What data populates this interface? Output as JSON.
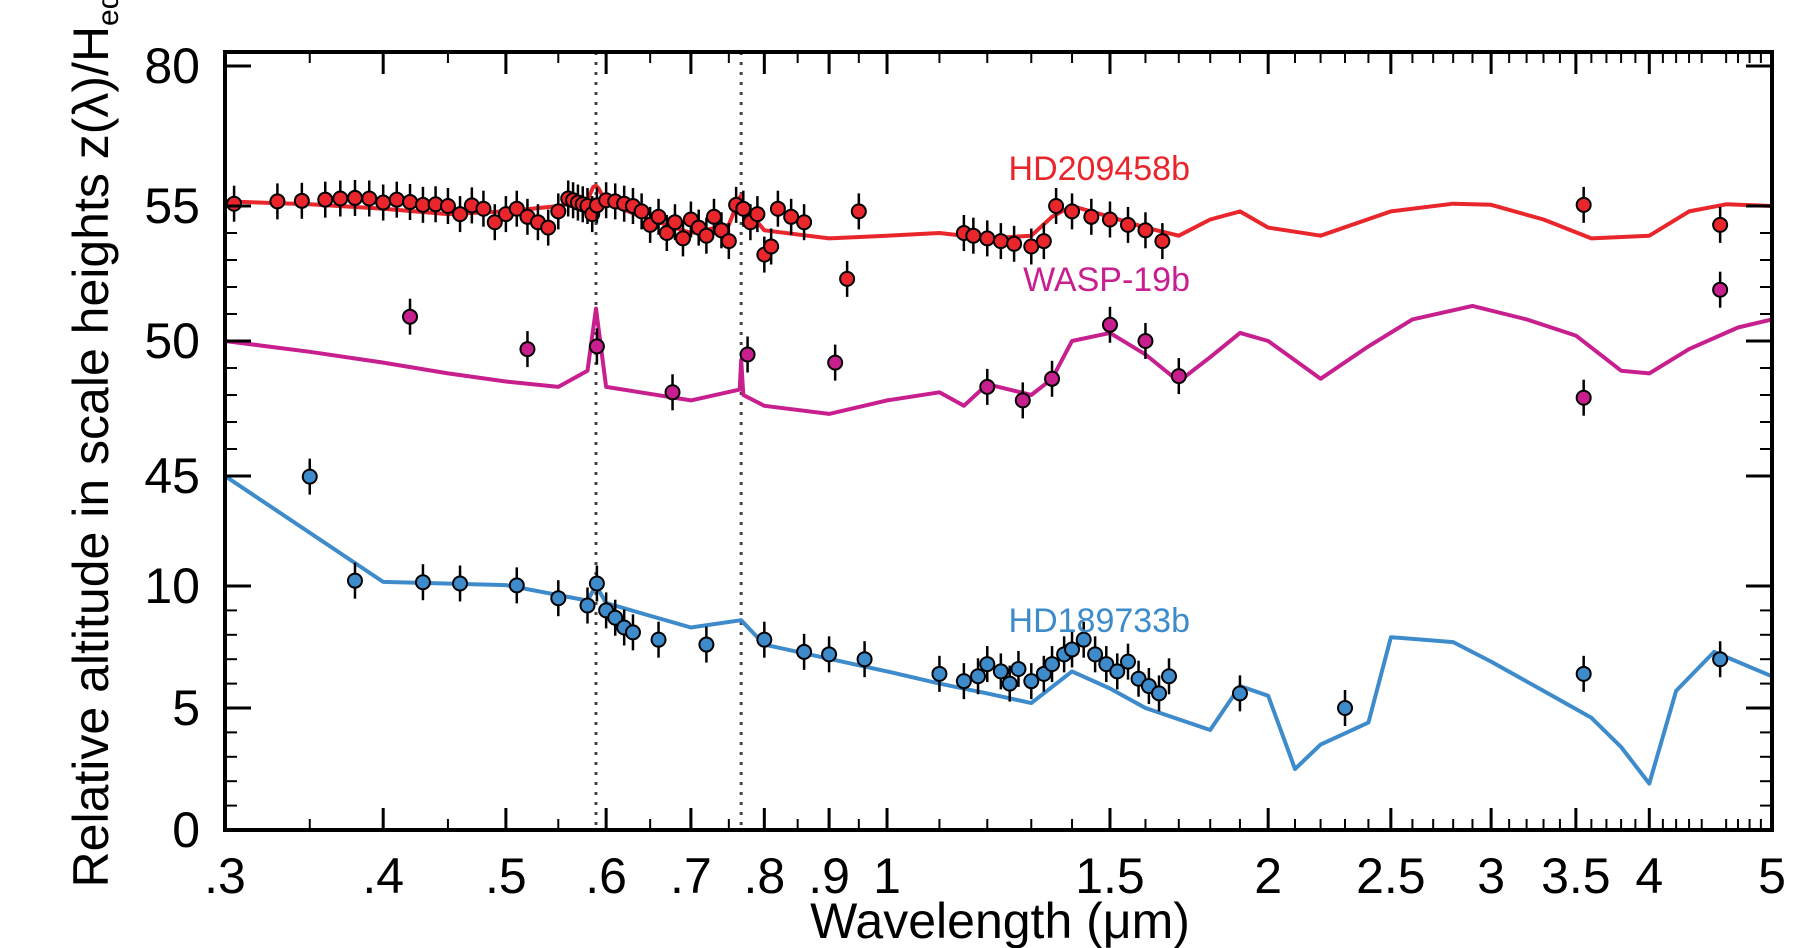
{
  "chart_data": {
    "type": "scatter",
    "xlabel": "Wavelength  (μm)",
    "ylabel": "Relative altitude in scale heights  z(λ)/H",
    "ylabel_sub": "eq",
    "x_scale": "log",
    "xlim": [
      0.3,
      5
    ],
    "x_tick_labels": [
      {
        "x": 0.3,
        "label": ".3"
      },
      {
        "x": 0.4,
        "label": ".4"
      },
      {
        "x": 0.5,
        "label": ".5"
      },
      {
        "x": 0.6,
        "label": ".6"
      },
      {
        "x": 0.7,
        "label": ".7"
      },
      {
        "x": 0.8,
        "label": ".8"
      },
      {
        "x": 0.9,
        "label": ".9"
      },
      {
        "x": 1,
        "label": "1"
      },
      {
        "x": 1.5,
        "label": "1.5"
      },
      {
        "x": 2,
        "label": "2"
      },
      {
        "x": 2.5,
        "label": "2.5"
      },
      {
        "x": 3,
        "label": "3"
      },
      {
        "x": 3.5,
        "label": "3.5"
      },
      {
        "x": 4,
        "label": "4"
      },
      {
        "x": 5,
        "label": "5"
      }
    ],
    "y_tick_labels": [
      "0",
      "5",
      "10",
      "45",
      "50",
      "55",
      "80"
    ],
    "y_axis_note": "broken axis: segments 0–10, 45–55, 80",
    "reference_lines": [
      0.589,
      0.767
    ],
    "grid": false,
    "series": [
      {
        "name": "HD209458b",
        "color": "#e8262b",
        "model": [
          [
            0.3,
            55.8
          ],
          [
            0.35,
            55.3
          ],
          [
            0.4,
            54.9
          ],
          [
            0.45,
            54.7
          ],
          [
            0.5,
            54.8
          ],
          [
            0.55,
            55.0
          ],
          [
            0.58,
            56.0
          ],
          [
            0.586,
            58.3
          ],
          [
            0.589,
            58.5
          ],
          [
            0.592,
            58.0
          ],
          [
            0.6,
            55.5
          ],
          [
            0.65,
            54.5
          ],
          [
            0.7,
            54.0
          ],
          [
            0.75,
            54.3
          ],
          [
            0.765,
            56.5
          ],
          [
            0.767,
            56.8
          ],
          [
            0.77,
            55.2
          ],
          [
            0.8,
            54.1
          ],
          [
            0.9,
            53.8
          ],
          [
            1.0,
            53.9
          ],
          [
            1.1,
            54.0
          ],
          [
            1.2,
            53.8
          ],
          [
            1.3,
            53.9
          ],
          [
            1.35,
            54.6
          ],
          [
            1.4,
            55.0
          ],
          [
            1.5,
            54.6
          ],
          [
            1.6,
            54.2
          ],
          [
            1.7,
            53.9
          ],
          [
            1.8,
            54.5
          ],
          [
            1.9,
            54.8
          ],
          [
            2.0,
            54.2
          ],
          [
            2.2,
            53.9
          ],
          [
            2.5,
            54.8
          ],
          [
            2.8,
            55.4
          ],
          [
            3.0,
            55.2
          ],
          [
            3.3,
            54.5
          ],
          [
            3.6,
            53.8
          ],
          [
            4.0,
            53.9
          ],
          [
            4.3,
            54.8
          ],
          [
            4.6,
            55.3
          ],
          [
            5.0,
            55.0
          ]
        ],
        "points": [
          [
            0.305,
            55.4
          ],
          [
            0.33,
            55.8
          ],
          [
            0.345,
            55.9
          ],
          [
            0.36,
            56.1
          ],
          [
            0.37,
            56.3
          ],
          [
            0.38,
            56.4
          ],
          [
            0.39,
            56.3
          ],
          [
            0.4,
            55.6
          ],
          [
            0.41,
            56.1
          ],
          [
            0.42,
            55.7
          ],
          [
            0.43,
            55.2
          ],
          [
            0.44,
            55.3
          ],
          [
            0.45,
            55.0
          ],
          [
            0.46,
            54.7
          ],
          [
            0.47,
            55.1
          ],
          [
            0.48,
            54.9
          ],
          [
            0.49,
            54.4
          ],
          [
            0.5,
            54.7
          ],
          [
            0.51,
            54.9
          ],
          [
            0.52,
            54.6
          ],
          [
            0.53,
            54.4
          ],
          [
            0.54,
            54.2
          ],
          [
            0.55,
            54.8
          ],
          [
            0.56,
            56.3
          ],
          [
            0.565,
            56.0
          ],
          [
            0.57,
            55.6
          ],
          [
            0.575,
            55.3
          ],
          [
            0.58,
            55.0
          ],
          [
            0.585,
            54.7
          ],
          [
            0.59,
            55.1
          ],
          [
            0.6,
            56.0
          ],
          [
            0.61,
            55.8
          ],
          [
            0.62,
            55.4
          ],
          [
            0.63,
            55.0
          ],
          [
            0.64,
            54.8
          ],
          [
            0.65,
            54.3
          ],
          [
            0.66,
            54.6
          ],
          [
            0.67,
            54.0
          ],
          [
            0.68,
            54.4
          ],
          [
            0.69,
            53.8
          ],
          [
            0.7,
            54.5
          ],
          [
            0.71,
            54.2
          ],
          [
            0.72,
            53.9
          ],
          [
            0.73,
            54.6
          ],
          [
            0.74,
            54.1
          ],
          [
            0.75,
            53.7
          ],
          [
            0.76,
            55.2
          ],
          [
            0.77,
            54.9
          ],
          [
            0.78,
            54.4
          ],
          [
            0.79,
            54.7
          ],
          [
            0.8,
            53.2
          ],
          [
            0.81,
            53.5
          ],
          [
            0.82,
            54.9
          ],
          [
            0.84,
            54.6
          ],
          [
            0.86,
            54.4
          ],
          [
            0.93,
            52.3
          ],
          [
            0.95,
            54.8
          ],
          [
            1.15,
            54.0
          ],
          [
            1.17,
            53.9
          ],
          [
            1.2,
            53.8
          ],
          [
            1.23,
            53.7
          ],
          [
            1.26,
            53.6
          ],
          [
            1.3,
            53.5
          ],
          [
            1.33,
            53.7
          ],
          [
            1.36,
            55.0
          ],
          [
            1.4,
            54.8
          ],
          [
            1.45,
            54.6
          ],
          [
            1.5,
            54.5
          ],
          [
            1.55,
            54.3
          ],
          [
            1.6,
            54.1
          ],
          [
            1.65,
            53.7
          ],
          [
            3.55,
            55.2
          ],
          [
            4.55,
            54.3
          ]
        ]
      },
      {
        "name": "WASP-19b",
        "color": "#c81f8e",
        "model": [
          [
            0.3,
            50.0
          ],
          [
            0.35,
            49.6
          ],
          [
            0.4,
            49.2
          ],
          [
            0.45,
            48.8
          ],
          [
            0.5,
            48.5
          ],
          [
            0.55,
            48.3
          ],
          [
            0.58,
            48.9
          ],
          [
            0.589,
            51.2
          ],
          [
            0.6,
            48.3
          ],
          [
            0.7,
            47.8
          ],
          [
            0.765,
            48.2
          ],
          [
            0.767,
            49.3
          ],
          [
            0.77,
            48.0
          ],
          [
            0.8,
            47.6
          ],
          [
            0.9,
            47.3
          ],
          [
            1.0,
            47.8
          ],
          [
            1.1,
            48.1
          ],
          [
            1.15,
            47.6
          ],
          [
            1.2,
            48.4
          ],
          [
            1.3,
            48.0
          ],
          [
            1.35,
            48.6
          ],
          [
            1.4,
            50.0
          ],
          [
            1.5,
            50.3
          ],
          [
            1.6,
            49.5
          ],
          [
            1.7,
            48.5
          ],
          [
            1.8,
            49.4
          ],
          [
            1.9,
            50.3
          ],
          [
            2.0,
            50.0
          ],
          [
            2.2,
            48.6
          ],
          [
            2.4,
            49.8
          ],
          [
            2.6,
            50.8
          ],
          [
            2.9,
            51.3
          ],
          [
            3.2,
            50.8
          ],
          [
            3.5,
            50.2
          ],
          [
            3.8,
            48.9
          ],
          [
            4.0,
            48.8
          ],
          [
            4.3,
            49.7
          ],
          [
            4.7,
            50.5
          ],
          [
            5.0,
            50.8
          ]
        ],
        "points": [
          [
            0.42,
            50.9
          ],
          [
            0.52,
            49.7
          ],
          [
            0.59,
            49.8
          ],
          [
            0.677,
            48.1
          ],
          [
            0.776,
            49.5
          ],
          [
            0.91,
            49.2
          ],
          [
            1.2,
            48.3
          ],
          [
            1.28,
            47.8
          ],
          [
            1.35,
            48.6
          ],
          [
            1.5,
            50.6
          ],
          [
            1.6,
            50.0
          ],
          [
            1.7,
            48.7
          ],
          [
            3.55,
            47.9
          ],
          [
            4.55,
            51.9
          ]
        ]
      },
      {
        "name": "HD189733b",
        "color": "#3d8bcb",
        "model": [
          [
            0.3,
            45.0
          ],
          [
            0.4,
            11.3
          ],
          [
            0.5,
            10.3
          ],
          [
            0.58,
            9.4
          ],
          [
            0.589,
            10.2
          ],
          [
            0.6,
            9.3
          ],
          [
            0.7,
            8.3
          ],
          [
            0.767,
            8.6
          ],
          [
            0.8,
            7.6
          ],
          [
            1.0,
            6.5
          ],
          [
            1.1,
            6.0
          ],
          [
            1.2,
            5.6
          ],
          [
            1.3,
            5.2
          ],
          [
            1.4,
            6.5
          ],
          [
            1.5,
            5.8
          ],
          [
            1.6,
            5.0
          ],
          [
            1.8,
            4.1
          ],
          [
            1.9,
            5.9
          ],
          [
            2.0,
            5.5
          ],
          [
            2.1,
            2.5
          ],
          [
            2.2,
            3.5
          ],
          [
            2.4,
            4.4
          ],
          [
            2.5,
            7.9
          ],
          [
            2.8,
            7.7
          ],
          [
            3.0,
            6.9
          ],
          [
            3.3,
            5.7
          ],
          [
            3.6,
            4.6
          ],
          [
            3.8,
            3.4
          ],
          [
            4.0,
            1.9
          ],
          [
            4.2,
            5.7
          ],
          [
            4.5,
            7.3
          ],
          [
            5.0,
            6.3
          ]
        ],
        "points": [
          [
            0.35,
            44.8
          ],
          [
            0.38,
            11.7
          ],
          [
            0.43,
            11.2
          ],
          [
            0.46,
            10.8
          ],
          [
            0.51,
            10.2
          ],
          [
            0.55,
            9.5
          ],
          [
            0.58,
            9.2
          ],
          [
            0.59,
            10.8
          ],
          [
            0.6,
            9.0
          ],
          [
            0.61,
            8.7
          ],
          [
            0.62,
            8.3
          ],
          [
            0.63,
            8.1
          ],
          [
            0.66,
            7.8
          ],
          [
            0.72,
            7.6
          ],
          [
            0.8,
            7.8
          ],
          [
            0.86,
            7.3
          ],
          [
            0.9,
            7.2
          ],
          [
            0.96,
            7.0
          ],
          [
            1.1,
            6.4
          ],
          [
            1.15,
            6.1
          ],
          [
            1.18,
            6.3
          ],
          [
            1.2,
            6.8
          ],
          [
            1.23,
            6.5
          ],
          [
            1.25,
            6.0
          ],
          [
            1.27,
            6.6
          ],
          [
            1.3,
            6.1
          ],
          [
            1.33,
            6.4
          ],
          [
            1.35,
            6.8
          ],
          [
            1.38,
            7.2
          ],
          [
            1.4,
            7.4
          ],
          [
            1.43,
            7.8
          ],
          [
            1.46,
            7.2
          ],
          [
            1.49,
            6.8
          ],
          [
            1.52,
            6.5
          ],
          [
            1.55,
            6.9
          ],
          [
            1.58,
            6.2
          ],
          [
            1.61,
            5.9
          ],
          [
            1.64,
            5.6
          ],
          [
            1.67,
            6.3
          ],
          [
            1.9,
            5.6
          ],
          [
            2.3,
            5.0
          ],
          [
            3.55,
            6.4
          ],
          [
            4.55,
            7.0
          ]
        ]
      }
    ]
  }
}
